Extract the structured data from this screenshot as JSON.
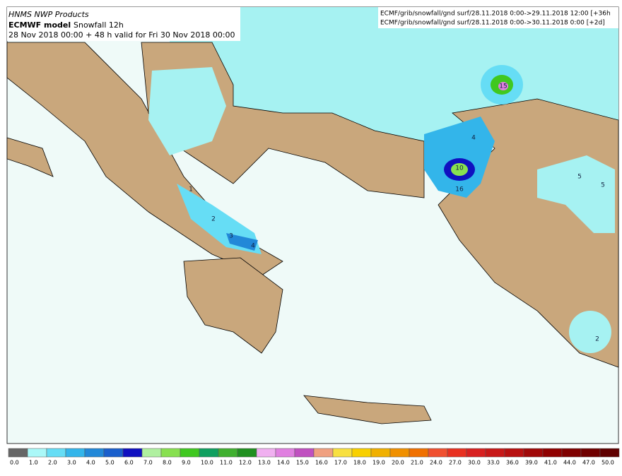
{
  "header": {
    "title": "HNMS NWP Products",
    "model": "ECMWF model",
    "product": "Snowfall 12h",
    "run": "28 Nov 2018 00:00 + 48 h valid for Fri 30 Nov 2018 00:00"
  },
  "sources": [
    "ECMF/grib/snowfall/gnd surf/28.11.2018 0:00->29.11.2018 12:00 [+36h",
    "ECMF/grib/snowfall/gnd surf/28.11.2018 0:00->30.11.2018 0:00 [+2d]"
  ],
  "map": {
    "contour_labels": [
      "1",
      "2",
      "3",
      "4",
      "4",
      "10",
      "16",
      "15",
      "5",
      "5",
      "2"
    ]
  },
  "colorbar": {
    "labels": [
      "0.0",
      "1.0",
      "2.0",
      "3.0",
      "4.0",
      "5.0",
      "6.0",
      "7.0",
      "8.0",
      "9.0",
      "10.0",
      "11.0",
      "12.0",
      "13.0",
      "14.0",
      "15.0",
      "16.0",
      "17.0",
      "18.0",
      "19.0",
      "20.0",
      "21.0",
      "24.0",
      "27.0",
      "30.0",
      "33.0",
      "36.0",
      "39.0",
      "41.0",
      "44.0",
      "47.0",
      "50.0"
    ],
    "colors": [
      "#666666",
      "#aaf8f8",
      "#66ddf5",
      "#33b5ea",
      "#2288d8",
      "#1a5fcc",
      "#1010c0",
      "#b0f0a0",
      "#88e050",
      "#40c820",
      "#10a060",
      "#40b030",
      "#209020",
      "#f0b0f0",
      "#e080e0",
      "#c050c0",
      "#f0a080",
      "#f8e040",
      "#f8d000",
      "#f0b000",
      "#f09000",
      "#f07000",
      "#f05030",
      "#e83020",
      "#d82020",
      "#c81818",
      "#b81010",
      "#a00808",
      "#900000",
      "#800000",
      "#700000",
      "#600000"
    ]
  }
}
